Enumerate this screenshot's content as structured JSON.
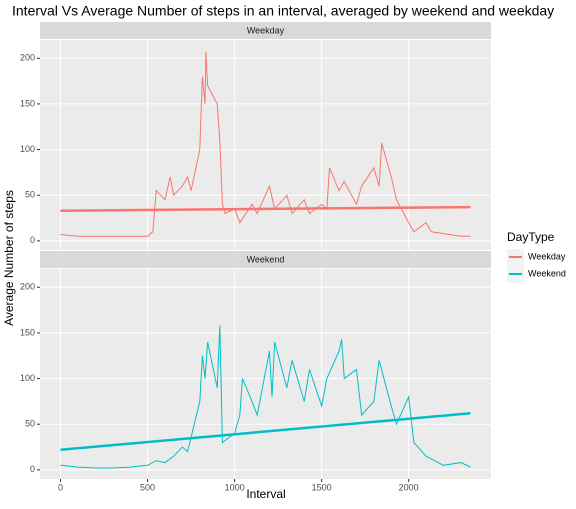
{
  "chart_data": {
    "type": "line",
    "title": "Interval Vs Average Number of steps in an interval, averaged by weekend and weekday",
    "xlabel": "Interval",
    "ylabel": "Average Number of steps",
    "xlim": [
      -118,
      2473
    ],
    "xticks": [
      0,
      500,
      1000,
      1500,
      2000
    ],
    "ylim": [
      -10,
      220
    ],
    "yticks": [
      0,
      50,
      100,
      150,
      200
    ],
    "grid": true,
    "legend": {
      "title": "DayType",
      "entries": [
        "Weekday",
        "Weekend"
      ],
      "colors": [
        "#F8766D",
        "#00BFC4"
      ],
      "position": "right"
    },
    "facets": [
      {
        "strip": "Weekday",
        "color": "#F8766D",
        "x": [
          0,
          100,
          200,
          300,
          400,
          500,
          530,
          550,
          600,
          630,
          650,
          700,
          730,
          750,
          800,
          815,
          830,
          835,
          845,
          900,
          915,
          930,
          945,
          1000,
          1030,
          1100,
          1130,
          1200,
          1230,
          1300,
          1330,
          1400,
          1430,
          1500,
          1530,
          1545,
          1600,
          1630,
          1700,
          1730,
          1800,
          1830,
          1845,
          1900,
          1930,
          2000,
          2030,
          2100,
          2130,
          2200,
          2300,
          2355
        ],
        "values": [
          7,
          5,
          5,
          5,
          5,
          5,
          10,
          55,
          45,
          70,
          50,
          60,
          70,
          55,
          100,
          180,
          150,
          207,
          170,
          150,
          110,
          40,
          30,
          35,
          20,
          40,
          30,
          60,
          35,
          50,
          30,
          45,
          30,
          40,
          35,
          80,
          55,
          65,
          40,
          60,
          80,
          60,
          107,
          70,
          45,
          20,
          10,
          20,
          10,
          8,
          5,
          5
        ],
        "trend_x": [
          0,
          2355
        ],
        "trend_values": [
          33,
          37
        ]
      },
      {
        "strip": "Weekend",
        "color": "#00BFC4",
        "x": [
          0,
          100,
          200,
          300,
          400,
          500,
          550,
          600,
          650,
          700,
          730,
          800,
          815,
          830,
          845,
          900,
          915,
          930,
          1000,
          1030,
          1045,
          1100,
          1130,
          1200,
          1215,
          1230,
          1300,
          1330,
          1400,
          1430,
          1500,
          1530,
          1600,
          1615,
          1630,
          1700,
          1730,
          1800,
          1830,
          1900,
          1930,
          2000,
          2030,
          2100,
          2130,
          2200,
          2300,
          2355
        ],
        "values": [
          5,
          3,
          2,
          2,
          3,
          5,
          10,
          8,
          15,
          25,
          20,
          75,
          125,
          100,
          140,
          90,
          158,
          30,
          40,
          60,
          100,
          75,
          60,
          130,
          80,
          140,
          90,
          120,
          75,
          110,
          70,
          100,
          130,
          143,
          100,
          110,
          60,
          75,
          120,
          70,
          50,
          80,
          30,
          15,
          12,
          5,
          8,
          3
        ],
        "trend_x": [
          0,
          2355
        ],
        "trend_values": [
          22,
          62
        ]
      }
    ]
  }
}
